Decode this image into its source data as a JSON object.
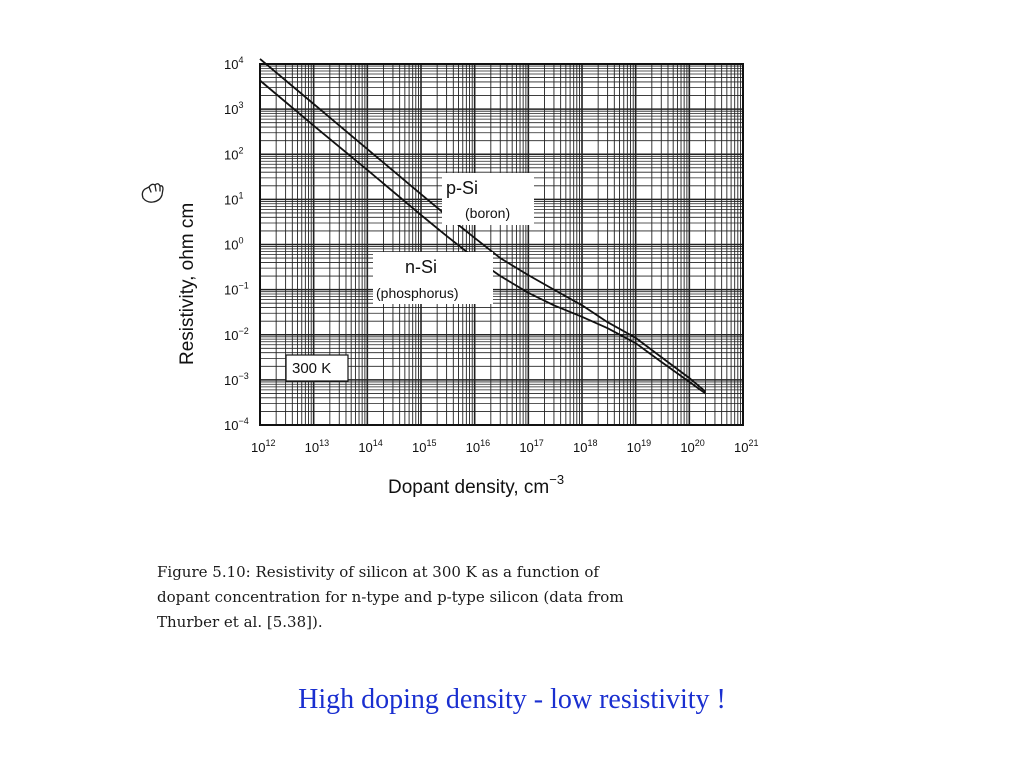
{
  "chart_data": {
    "type": "line",
    "xscale": "log",
    "yscale": "log",
    "xlim": [
      1000000000000.0,
      1e+21
    ],
    "ylim": [
      0.0001,
      10000.0
    ],
    "xlabel": "Dopant density, cm",
    "xlabel_exponent": "−3",
    "ylabel": "Resistivity, ohm cm",
    "x_tick_labels": [
      {
        "base": "10",
        "exp": "12"
      },
      {
        "base": "10",
        "exp": "13"
      },
      {
        "base": "10",
        "exp": "14"
      },
      {
        "base": "10",
        "exp": "15"
      },
      {
        "base": "10",
        "exp": "16"
      },
      {
        "base": "10",
        "exp": "17"
      },
      {
        "base": "10",
        "exp": "18"
      },
      {
        "base": "10",
        "exp": "19"
      },
      {
        "base": "10",
        "exp": "20"
      },
      {
        "base": "10",
        "exp": "21"
      }
    ],
    "y_tick_labels": [
      {
        "base": "10",
        "exp": "4"
      },
      {
        "base": "10",
        "exp": "3"
      },
      {
        "base": "10",
        "exp": "2"
      },
      {
        "base": "10",
        "exp": "1"
      },
      {
        "base": "10",
        "exp": "0"
      },
      {
        "base": "10",
        "exp": "−1"
      },
      {
        "base": "10",
        "exp": "−2"
      },
      {
        "base": "10",
        "exp": "−3"
      },
      {
        "base": "10",
        "exp": "−4"
      }
    ],
    "grid": true,
    "series": [
      {
        "name": "p-Si",
        "note": "(boron)",
        "x": [
          1000000000000.0,
          10000000000000.0,
          100000000000000.0,
          1000000000000000.0,
          3000000000000000.0,
          1e+16,
          3e+16,
          1e+17,
          3e+17,
          1e+18,
          3e+18,
          1e+19,
          3e+19,
          1e+20,
          2e+20
        ],
        "y": [
          13000,
          1300,
          130,
          13,
          4.4,
          1.4,
          0.5,
          0.21,
          0.1,
          0.045,
          0.019,
          0.0085,
          0.0032,
          0.0011,
          0.00055
        ]
      },
      {
        "name": "n-Si",
        "note": "(phosphorus)",
        "x": [
          1000000000000.0,
          10000000000000.0,
          100000000000000.0,
          1000000000000000.0,
          3000000000000000.0,
          1e+16,
          3e+16,
          1e+17,
          3e+17,
          1e+18,
          3e+18,
          1e+19,
          3e+19,
          1e+20,
          2e+20
        ],
        "y": [
          4300,
          430,
          45,
          4.5,
          1.55,
          0.5,
          0.2,
          0.085,
          0.045,
          0.025,
          0.014,
          0.0065,
          0.0025,
          0.0009,
          0.0005
        ]
      }
    ],
    "annotations": [
      "300 K"
    ]
  },
  "caption": {
    "line1": "Figure 5.10:   Resistivity of silicon at 300 K as a function of",
    "line2": "dopant concentration for n-type and p-type silicon (data from",
    "line3": "Thurber et al. [5.38])."
  },
  "slide_note": "High doping density - low resistivity !",
  "colors": {
    "ink": "#111111",
    "slide_note": "#1a2fd0"
  },
  "icons": [
    "hand-icon"
  ]
}
